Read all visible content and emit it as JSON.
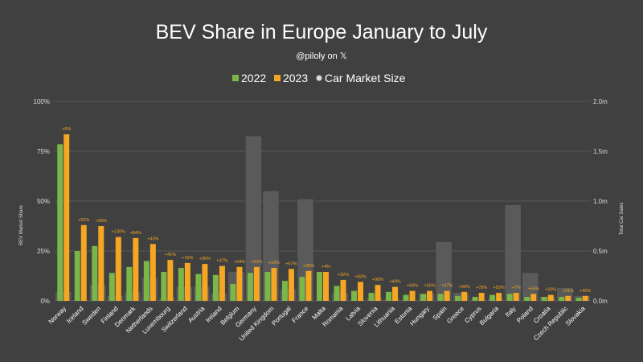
{
  "chart_data": {
    "type": "bar",
    "title": "BEV Share in Europe January to July",
    "subtitle": "@piloly on 𝕏",
    "ylabel": "BEV Market Share",
    "y2label": "Total Car Sales",
    "ylim": [
      0,
      100
    ],
    "y2lim": [
      0,
      2.0
    ],
    "yticks": [
      "0%",
      "25%",
      "50%",
      "75%",
      "100%"
    ],
    "y2ticks": [
      "0.0m",
      "0.5m",
      "1.0m",
      "1.5m",
      "2.0m"
    ],
    "legend_position": "top-center",
    "categories": [
      "Norway",
      "Iceland",
      "Sweden",
      "Finland",
      "Denmark",
      "Netherlands",
      "Luxembourg",
      "Switzerland",
      "Austria",
      "Ireland",
      "Belgium",
      "Germany",
      "United Kingdom",
      "Portugal",
      "France",
      "Malta",
      "Romania",
      "Latvia",
      "Slovenia",
      "Lithuania",
      "Estonia",
      "Hungary",
      "Spain",
      "Greece",
      "Cyprus",
      "Bulgaria",
      "Italy",
      "Poland",
      "Croatia",
      "Czech Republic",
      "Slovakia"
    ],
    "series": [
      {
        "name": "2022",
        "color": "#7ab648",
        "values": [
          78.5,
          25,
          27.5,
          14,
          17,
          20,
          14.5,
          16.5,
          13.5,
          13,
          8.5,
          14,
          14.5,
          10,
          12,
          14.5,
          7.5,
          5,
          4,
          4.5,
          3,
          3.5,
          3.5,
          2.5,
          2,
          3,
          3.5,
          2,
          2,
          2,
          1.5
        ]
      },
      {
        "name": "2023",
        "color": "#f5a623",
        "values": [
          83.5,
          38,
          37.5,
          32,
          31.5,
          28.5,
          20.5,
          19,
          18.5,
          17.5,
          17,
          17,
          16.5,
          16,
          15,
          14.5,
          10.5,
          9.5,
          8,
          7,
          5,
          5,
          5,
          4.5,
          4,
          4,
          4,
          3.5,
          3,
          2.5,
          2.5
        ]
      },
      {
        "name": "Car Market Size",
        "values": [
          0.09,
          0.01,
          0.16,
          0.05,
          0.09,
          0.23,
          0.03,
          0.14,
          0.14,
          0.08,
          0.29,
          1.65,
          1.1,
          0.12,
          1.02,
          0.005,
          0.08,
          0.01,
          0.03,
          0.02,
          0.01,
          0.07,
          0.59,
          0.08,
          0.01,
          0.02,
          0.96,
          0.28,
          0.04,
          0.13,
          0.05
        ]
      }
    ],
    "annotations": [
      "+6%",
      "+52%",
      "+36%",
      "+130%",
      "+84%",
      "+43%",
      "+41%",
      "+16%",
      "+36%",
      "+37%",
      "+94%",
      "+21%",
      "+15%",
      "+57%",
      "+26%",
      "+4%",
      "+32%",
      "+83%",
      "+96%",
      "+49%",
      "+69%",
      "+26%",
      "+37%",
      "+99%",
      "+78%",
      "+50%",
      "+7%",
      "+55%",
      "+20%",
      "+31%",
      "+40%"
    ]
  },
  "colors": {
    "background": "#404040",
    "market_bar": "#5a5a5a",
    "grid": "#575757",
    "text": "#ffffff",
    "annotation": "#f5a623",
    "legend_marker_market": "#d9d9d9"
  }
}
